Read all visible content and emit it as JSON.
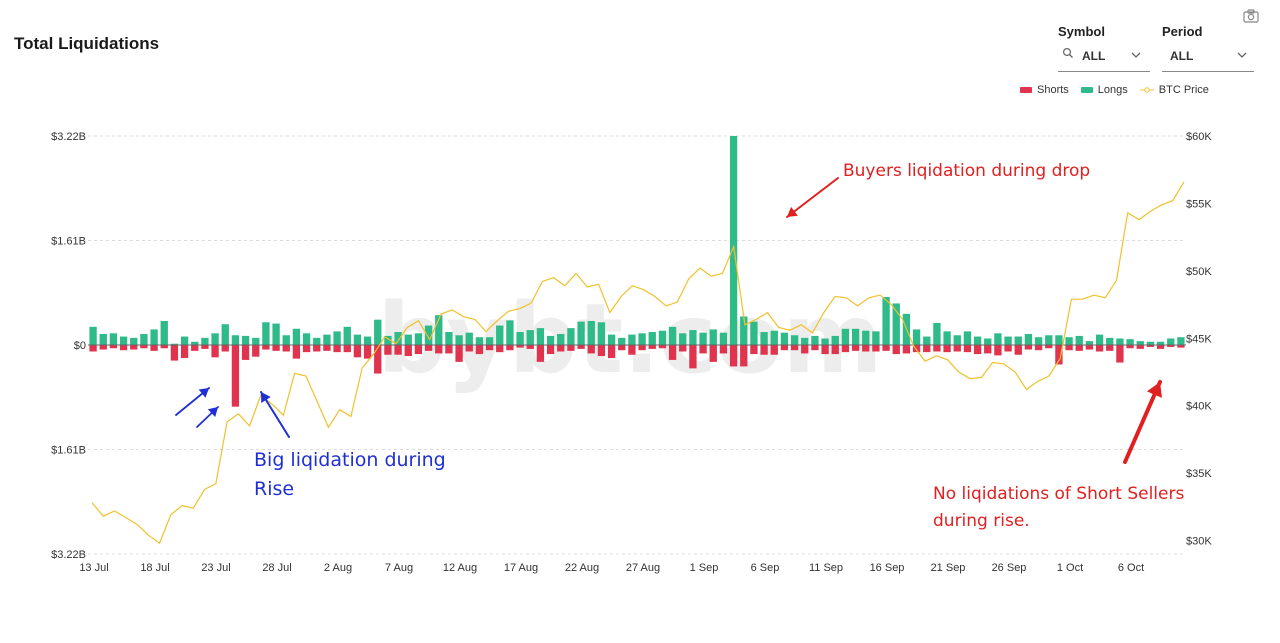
{
  "header": {
    "title": "Total Liquidations"
  },
  "filters": {
    "symbol": {
      "label": "Symbol",
      "value": "ALL"
    },
    "period": {
      "label": "Period",
      "value": "ALL"
    }
  },
  "legend": {
    "shorts": {
      "label": "Shorts",
      "color": "#e0334d"
    },
    "longs": {
      "label": "Longs",
      "color": "#2eba89"
    },
    "btc": {
      "label": "BTC Price",
      "color": "#f0c12c"
    }
  },
  "annotations": {
    "buyers": "Buyers liqidation during drop",
    "big_line1": "Big liqidation during",
    "big_line2": "Rise",
    "no_line1": "No liqidations of Short Sellers",
    "no_line2": "during rise."
  },
  "chart_data": {
    "type": "bar",
    "title": "Total Liquidations",
    "x_tick_labels": [
      "13 Jul",
      "18 Jul",
      "23 Jul",
      "28 Jul",
      "2 Aug",
      "7 Aug",
      "12 Aug",
      "17 Aug",
      "22 Aug",
      "27 Aug",
      "1 Sep",
      "6 Sep",
      "11 Sep",
      "16 Sep",
      "21 Sep",
      "26 Sep",
      "1 Oct",
      "6 Oct"
    ],
    "y_left_tick_labels": [
      "$3.22B",
      "$1.61B",
      "$0",
      "$1.61B",
      "$3.22B"
    ],
    "y_left_range": [
      -3.22,
      3.22
    ],
    "y_right_tick_labels": [
      "$60K",
      "$55K",
      "$50K",
      "$45K",
      "$40K",
      "$35K",
      "$30K"
    ],
    "y_right_range": [
      29000,
      60000
    ],
    "grid": true,
    "legend_position": "top-right",
    "series": [
      {
        "name": "Longs",
        "unit": "billion USD",
        "values": [
          0.28,
          0.17,
          0.18,
          0.13,
          0.11,
          0.17,
          0.24,
          0.37,
          0.02,
          0.13,
          0.05,
          0.11,
          0.18,
          0.32,
          0.15,
          0.14,
          0.11,
          0.35,
          0.33,
          0.15,
          0.25,
          0.18,
          0.11,
          0.16,
          0.21,
          0.28,
          0.16,
          0.13,
          0.39,
          0.14,
          0.2,
          0.16,
          0.18,
          0.3,
          0.46,
          0.2,
          0.15,
          0.19,
          0.12,
          0.12,
          0.3,
          0.38,
          0.2,
          0.23,
          0.26,
          0.14,
          0.17,
          0.26,
          0.36,
          0.37,
          0.35,
          0.16,
          0.11,
          0.16,
          0.18,
          0.2,
          0.22,
          0.28,
          0.18,
          0.23,
          0.19,
          0.24,
          0.19,
          3.22,
          0.44,
          0.36,
          0.2,
          0.22,
          0.19,
          0.15,
          0.11,
          0.14,
          0.1,
          0.14,
          0.25,
          0.25,
          0.22,
          0.21,
          0.74,
          0.64,
          0.48,
          0.24,
          0.13,
          0.34,
          0.21,
          0.15,
          0.21,
          0.13,
          0.1,
          0.18,
          0.13,
          0.13,
          0.17,
          0.12,
          0.15,
          0.15,
          0.12,
          0.14,
          0.06,
          0.16,
          0.11,
          0.1,
          0.09,
          0.06,
          0.05,
          0.05,
          0.1,
          0.12
        ]
      },
      {
        "name": "Shorts",
        "unit": "billion USD",
        "values": [
          -0.1,
          -0.07,
          -0.05,
          -0.08,
          -0.07,
          -0.05,
          -0.09,
          -0.05,
          -0.24,
          -0.2,
          -0.09,
          -0.06,
          -0.19,
          -0.1,
          -0.95,
          -0.23,
          -0.18,
          -0.07,
          -0.09,
          -0.1,
          -0.21,
          -0.11,
          -0.1,
          -0.09,
          -0.11,
          -0.11,
          -0.19,
          -0.21,
          -0.44,
          -0.15,
          -0.15,
          -0.17,
          -0.14,
          -0.09,
          -0.13,
          -0.13,
          -0.26,
          -0.1,
          -0.14,
          -0.08,
          -0.11,
          -0.08,
          -0.04,
          -0.06,
          -0.26,
          -0.14,
          -0.1,
          -0.09,
          -0.06,
          -0.13,
          -0.17,
          -0.2,
          -0.08,
          -0.15,
          -0.08,
          -0.06,
          -0.05,
          -0.23,
          -0.1,
          -0.36,
          -0.13,
          -0.26,
          -0.13,
          -0.33,
          -0.33,
          -0.14,
          -0.15,
          -0.15,
          -0.08,
          -0.08,
          -0.13,
          -0.08,
          -0.14,
          -0.14,
          -0.11,
          -0.09,
          -0.1,
          -0.1,
          -0.09,
          -0.14,
          -0.13,
          -0.11,
          -0.11,
          -0.1,
          -0.11,
          -0.1,
          -0.11,
          -0.14,
          -0.13,
          -0.16,
          -0.1,
          -0.15,
          -0.07,
          -0.08,
          -0.05,
          -0.3,
          -0.08,
          -0.09,
          -0.07,
          -0.1,
          -0.09,
          -0.27,
          -0.05,
          -0.06,
          -0.03,
          -0.06,
          -0.03,
          -0.04
        ]
      },
      {
        "name": "BTC Price",
        "unit": "USD",
        "type": "line",
        "values": [
          32800,
          31800,
          32200,
          31700,
          31200,
          30400,
          29800,
          31900,
          32600,
          32400,
          33800,
          34200,
          38800,
          39400,
          38500,
          40800,
          40100,
          39300,
          42400,
          42200,
          40300,
          38400,
          39700,
          39200,
          42800,
          43800,
          45100,
          44600,
          45800,
          46300,
          44900,
          46800,
          47100,
          46600,
          46400,
          45500,
          46300,
          47000,
          47200,
          47600,
          49200,
          49500,
          48900,
          49800,
          48800,
          49000,
          46900,
          48100,
          48900,
          48600,
          48100,
          47400,
          47700,
          49400,
          50200,
          49600,
          49800,
          51800,
          46000,
          46400,
          46900,
          45800,
          45600,
          46000,
          45400,
          46900,
          48100,
          48000,
          47400,
          48000,
          48200,
          47500,
          46400,
          44400,
          43300,
          43700,
          43400,
          42500,
          42000,
          42100,
          43200,
          43100,
          42500,
          41200,
          41800,
          42200,
          43500,
          47900,
          47900,
          48200,
          48000,
          49300,
          54300,
          53800,
          54400,
          54900,
          55200,
          56600
        ]
      }
    ]
  }
}
